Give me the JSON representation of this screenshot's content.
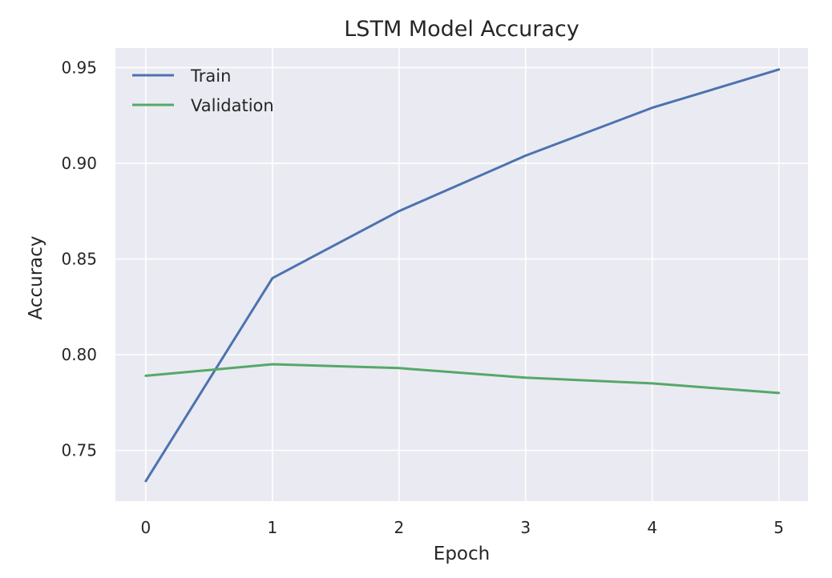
{
  "chart_data": {
    "type": "line",
    "title": "LSTM Model Accuracy",
    "xlabel": "Epoch",
    "ylabel": "Accuracy",
    "x": [
      0,
      1,
      2,
      3,
      4,
      5
    ],
    "xticks": [
      "0",
      "1",
      "2",
      "3",
      "4",
      "5"
    ],
    "yticks": [
      "0.75",
      "0.80",
      "0.85",
      "0.90",
      "0.95"
    ],
    "xlim": [
      -0.24,
      5.23
    ],
    "ylim": [
      0.7235,
      0.9602
    ],
    "grid": true,
    "legend_position": "top-left",
    "series": [
      {
        "name": "Train",
        "color": "#4c72b0",
        "values": [
          0.734,
          0.84,
          0.875,
          0.904,
          0.929,
          0.949
        ]
      },
      {
        "name": "Validation",
        "color": "#55a868",
        "values": [
          0.789,
          0.795,
          0.793,
          0.788,
          0.785,
          0.78
        ]
      }
    ],
    "background_color": "#eaeaf2",
    "grid_color": "#ffffff"
  }
}
